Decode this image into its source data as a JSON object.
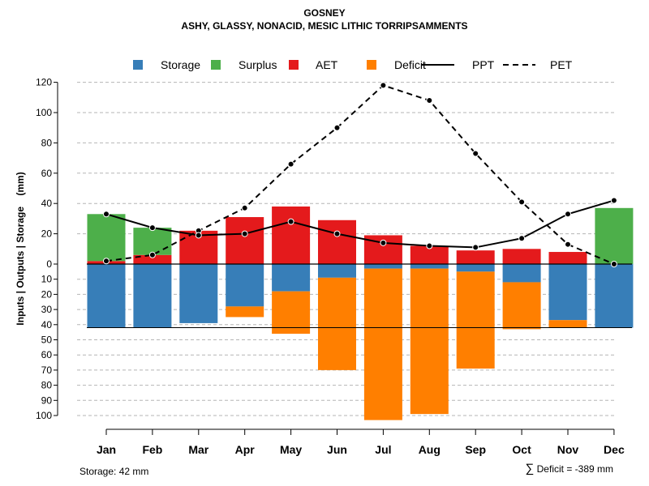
{
  "chart_data": {
    "type": "bar",
    "title": "GOSNEY",
    "subtitle": "ASHY, GLASSY, NONACID, MESIC LITHIC TORRIPSAMMENTS",
    "ylabel": "Inputs | Outputs | Storage    (mm)",
    "xlabel": "",
    "categories": [
      "Jan",
      "Feb",
      "Mar",
      "Apr",
      "May",
      "Jun",
      "Jul",
      "Aug",
      "Sep",
      "Oct",
      "Nov",
      "Dec"
    ],
    "upper_ylim": [
      0,
      120
    ],
    "upper_ticks": [
      "120",
      "100",
      "80",
      "60",
      "40",
      "20",
      "0"
    ],
    "lower_ylim": [
      0,
      100
    ],
    "lower_ticks": [
      "10",
      "20",
      "30",
      "40",
      "50",
      "60",
      "70",
      "80",
      "90",
      "100"
    ],
    "grid": true,
    "legend_position": "top",
    "legend": [
      {
        "label": "Storage",
        "kind": "box",
        "color": "#377EB8"
      },
      {
        "label": "Surplus",
        "kind": "box",
        "color": "#4DAF4A"
      },
      {
        "label": "AET",
        "kind": "box",
        "color": "#E41A1C"
      },
      {
        "label": "Deficit",
        "kind": "box",
        "color": "#FF7F00"
      },
      {
        "label": "PPT",
        "kind": "solid-line",
        "color": "#000000"
      },
      {
        "label": "PET",
        "kind": "dashed-line",
        "color": "#000000"
      }
    ],
    "series": [
      {
        "name": "AET",
        "values": [
          2,
          6,
          22,
          31,
          38,
          29,
          19,
          12,
          9,
          10,
          8,
          0
        ]
      },
      {
        "name": "Surplus",
        "values": [
          31,
          18,
          0,
          0,
          0,
          0,
          0,
          0,
          0,
          0,
          0,
          37
        ]
      },
      {
        "name": "Storage",
        "values": [
          42,
          42,
          39,
          28,
          18,
          9,
          3,
          3,
          5,
          12,
          37,
          42
        ]
      },
      {
        "name": "Deficit",
        "values": [
          0,
          0,
          0,
          7,
          28,
          61,
          100,
          96,
          64,
          31,
          5,
          0
        ]
      },
      {
        "name": "PPT",
        "values": [
          33,
          24,
          19,
          20,
          28,
          20,
          14,
          12,
          11,
          17,
          33,
          42
        ]
      },
      {
        "name": "PET",
        "values": [
          2,
          6,
          22,
          37,
          66,
          90,
          118,
          108,
          73,
          41,
          13,
          0
        ]
      }
    ],
    "storage_capacity": 42
  },
  "footer": {
    "storage_text": "Storage: 42 mm",
    "deficit_symbol": "∑",
    "deficit_text": "Deficit = -389 mm"
  }
}
